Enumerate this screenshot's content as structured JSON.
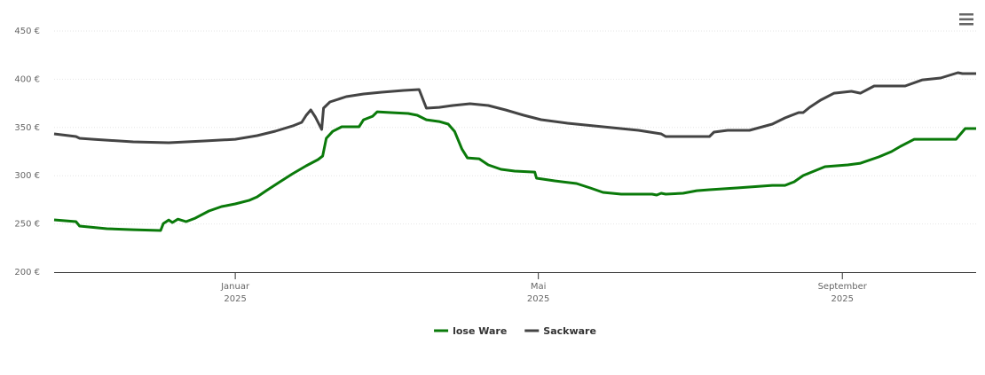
{
  "chart_data": {
    "type": "line",
    "ylim": [
      200,
      450
    ],
    "yticks": [
      {
        "value": 200,
        "label": "200 €"
      },
      {
        "value": 250,
        "label": "250 €"
      },
      {
        "value": 300,
        "label": "300 €"
      },
      {
        "value": 350,
        "label": "350 €"
      },
      {
        "value": 400,
        "label": "400 €"
      },
      {
        "value": 450,
        "label": "450 €"
      }
    ],
    "xlim": [
      2024.801,
      2025.814
    ],
    "xticks": [
      {
        "value": 2025.0,
        "label": "Januar 2025"
      },
      {
        "value": 2025.333,
        "label": "Mai 2025"
      },
      {
        "value": 2025.667,
        "label": "September 2025"
      }
    ],
    "grid": true,
    "legend": "bottom",
    "series": [
      {
        "name": "lose Ware",
        "color": "#0a7a0a",
        "x": [
          2024.801,
          2024.825,
          2024.829,
          2024.859,
          2024.888,
          2024.918,
          2024.921,
          2024.927,
          2024.931,
          2024.937,
          2024.946,
          2024.956,
          2024.971,
          2024.985,
          2025.0,
          2025.015,
          2025.024,
          2025.034,
          2025.049,
          2025.063,
          2025.078,
          2025.091,
          2025.096,
          2025.1,
          2025.107,
          2025.117,
          2025.136,
          2025.141,
          2025.151,
          2025.156,
          2025.171,
          2025.19,
          2025.2,
          2025.21,
          2025.224,
          2025.234,
          2025.241,
          2025.249,
          2025.255,
          2025.268,
          2025.278,
          2025.292,
          2025.307,
          2025.329,
          2025.331,
          2025.351,
          2025.375,
          2025.39,
          2025.404,
          2025.424,
          2025.458,
          2025.463,
          2025.468,
          2025.473,
          2025.492,
          2025.507,
          2025.521,
          2025.551,
          2025.59,
          2025.604,
          2025.614,
          2025.624,
          2025.648,
          2025.673,
          2025.687,
          2025.707,
          2025.721,
          2025.731,
          2025.746,
          2025.775,
          2025.792,
          2025.802,
          2025.814
        ],
        "values": [
          254.2,
          252.4,
          247.8,
          245,
          244,
          243.2,
          250.5,
          254,
          251.5,
          255,
          252.4,
          256,
          263.4,
          268,
          270.8,
          274.4,
          278,
          284.5,
          293.7,
          302,
          310.3,
          316.7,
          320.4,
          338.8,
          346,
          350.7,
          350.7,
          358,
          361.7,
          366.3,
          365.4,
          364.5,
          362.7,
          358,
          356.2,
          353.5,
          346,
          327.7,
          318.5,
          317.6,
          311.2,
          306.6,
          304.8,
          303.8,
          297.4,
          294.7,
          291.9,
          287.3,
          282.7,
          280.9,
          280.9,
          280,
          281.8,
          280.9,
          281.8,
          284.5,
          285.5,
          287.3,
          290,
          290,
          293.7,
          300.2,
          309.4,
          311.2,
          313,
          319.5,
          325,
          330.5,
          337.8,
          337.8,
          337.8,
          348.9,
          348.9
        ]
      },
      {
        "name": "Sackware",
        "color": "#444444",
        "x": [
          2024.801,
          2024.825,
          2024.829,
          2024.844,
          2024.888,
          2024.927,
          2024.966,
          2025.0,
          2025.024,
          2025.044,
          2025.063,
          2025.073,
          2025.078,
          2025.083,
          2025.088,
          2025.095,
          2025.097,
          2025.104,
          2025.122,
          2025.141,
          2025.161,
          2025.185,
          2025.202,
          2025.21,
          2025.224,
          2025.239,
          2025.258,
          2025.278,
          2025.297,
          2025.317,
          2025.336,
          2025.365,
          2025.404,
          2025.443,
          2025.468,
          2025.473,
          2025.521,
          2025.526,
          2025.541,
          2025.565,
          2025.59,
          2025.604,
          2025.619,
          2025.624,
          2025.631,
          2025.643,
          2025.658,
          2025.677,
          2025.687,
          2025.702,
          2025.736,
          2025.755,
          2025.775,
          2025.794,
          2025.799,
          2025.814
        ],
        "values": [
          343.4,
          340.6,
          338.8,
          337.8,
          335.1,
          334.2,
          336,
          337.8,
          341.5,
          346.1,
          351.6,
          355.3,
          362.7,
          368.2,
          360.8,
          348,
          370,
          376.5,
          382,
          384.7,
          386.6,
          388.4,
          389.3,
          370,
          370.9,
          372.8,
          374.6,
          372.8,
          368.2,
          362.7,
          358.1,
          354.4,
          350.7,
          347.1,
          343.4,
          340.6,
          340.6,
          345.2,
          347.1,
          347.1,
          353.5,
          359.9,
          365.4,
          365.4,
          370.9,
          378.3,
          385.6,
          387.5,
          385.6,
          393,
          393,
          399.4,
          401.3,
          406.8,
          405.9,
          405.9
        ]
      }
    ]
  }
}
